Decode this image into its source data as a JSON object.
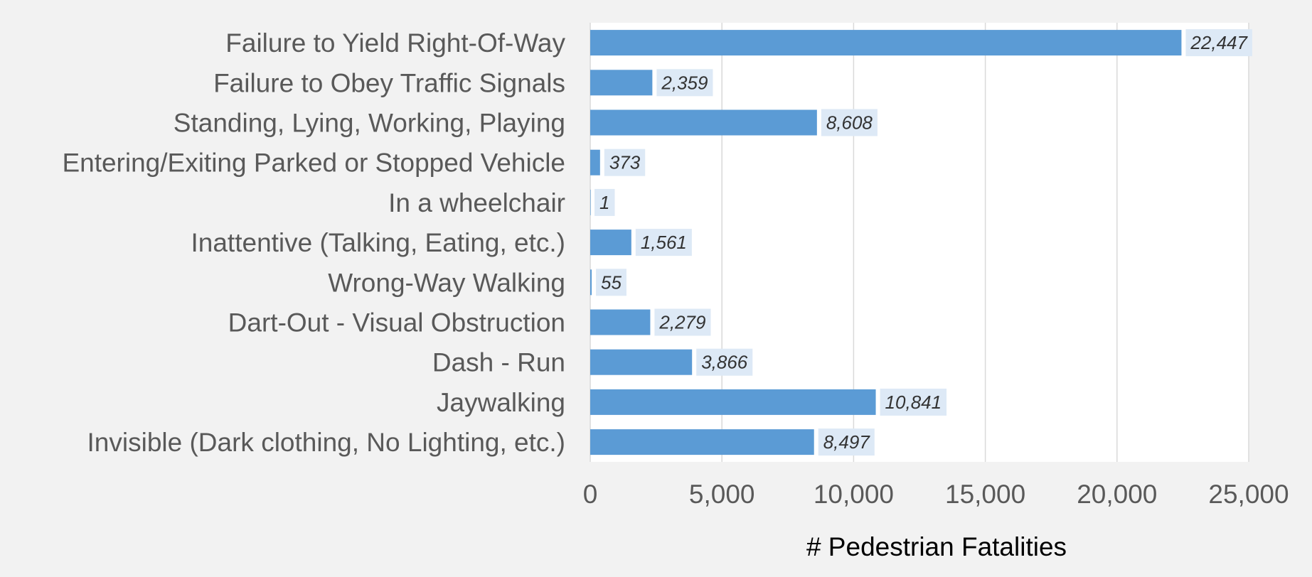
{
  "colors": {
    "background": "#f2f2f2",
    "plot_background": "#ffffff",
    "bar": "#5b9bd5",
    "gridline": "#d9d9d9",
    "data_label_background": "#dde9f6"
  },
  "chart_data": {
    "type": "bar",
    "orientation": "horizontal",
    "title": "",
    "xlabel": "# Pedestrian Fatalities",
    "ylabel": "",
    "xlim": [
      0,
      25000
    ],
    "xticks": [
      0,
      5000,
      10000,
      15000,
      20000,
      25000
    ],
    "xtick_labels": [
      "0",
      "5,000",
      "10,000",
      "15,000",
      "20,000",
      "25,000"
    ],
    "grid": "vertical",
    "legend": "none",
    "categories": [
      "Failure to Yield Right-Of-Way",
      "Failure to Obey Traffic Signals",
      "Standing, Lying, Working, Playing",
      "Entering/Exiting Parked or Stopped Vehicle",
      "In a wheelchair",
      "Inattentive (Talking, Eating, etc.)",
      "Wrong-Way Walking",
      "Dart-Out - Visual Obstruction",
      "Dash - Run",
      "Jaywalking",
      "Invisible (Dark clothing, No Lighting, etc.)"
    ],
    "values": [
      22447,
      2359,
      8608,
      373,
      1,
      1561,
      55,
      2279,
      3866,
      10841,
      8497
    ],
    "value_labels": [
      "22,447",
      "2,359",
      "8,608",
      "373",
      "1",
      "1,561",
      "55",
      "2,279",
      "3,866",
      "10,841",
      "8,497"
    ]
  }
}
